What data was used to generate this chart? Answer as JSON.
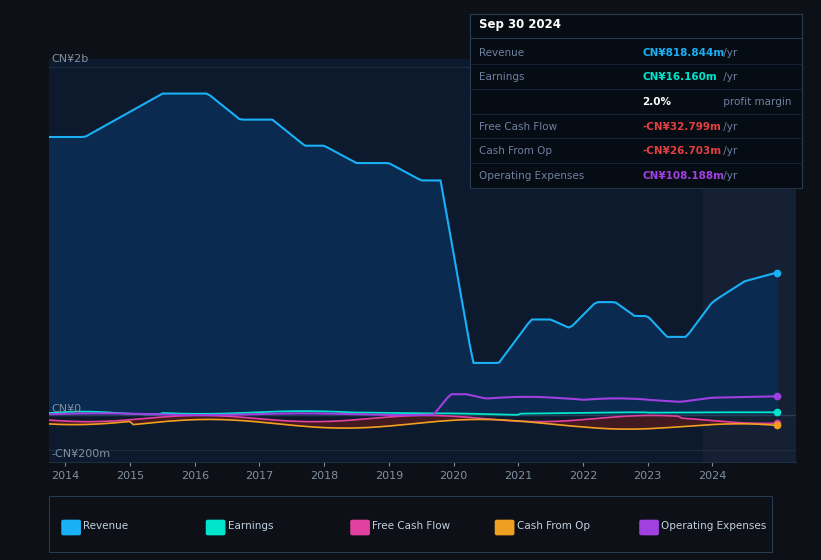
{
  "bg_color": "#0d1117",
  "plot_bg_color": "#0d1a2d",
  "series": {
    "revenue": {
      "color": "#1ab0f5",
      "fill_color": "#0a2a50",
      "label": "Revenue"
    },
    "earnings": {
      "color": "#00e5cc",
      "label": "Earnings"
    },
    "free_cash_flow": {
      "color": "#e040a0",
      "label": "Free Cash Flow"
    },
    "cash_from_op": {
      "color": "#f0a020",
      "label": "Cash From Op"
    },
    "operating_expenses": {
      "color": "#a040e0",
      "label": "Operating Expenses"
    }
  },
  "ylabel_top": "CN¥2b",
  "ylabel_zero": "CN¥0",
  "ylabel_neg": "-CN¥200m",
  "info_box": {
    "date": "Sep 30 2024",
    "rows": [
      {
        "label": "Revenue",
        "value": "CN¥818.844m",
        "suffix": " /yr",
        "value_color": "#1ab0f5"
      },
      {
        "label": "Earnings",
        "value": "CN¥16.160m",
        "suffix": " /yr",
        "value_color": "#00e5cc"
      },
      {
        "label": "",
        "value": "2.0%",
        "suffix": " profit margin",
        "value_color": "#ffffff"
      },
      {
        "label": "Free Cash Flow",
        "value": "-CN¥32.799m",
        "suffix": " /yr",
        "value_color": "#e04040"
      },
      {
        "label": "Cash From Op",
        "value": "-CN¥26.703m",
        "suffix": " /yr",
        "value_color": "#e04040"
      },
      {
        "label": "Operating Expenses",
        "value": "CN¥108.188m",
        "suffix": " /yr",
        "value_color": "#a040e0"
      }
    ]
  }
}
